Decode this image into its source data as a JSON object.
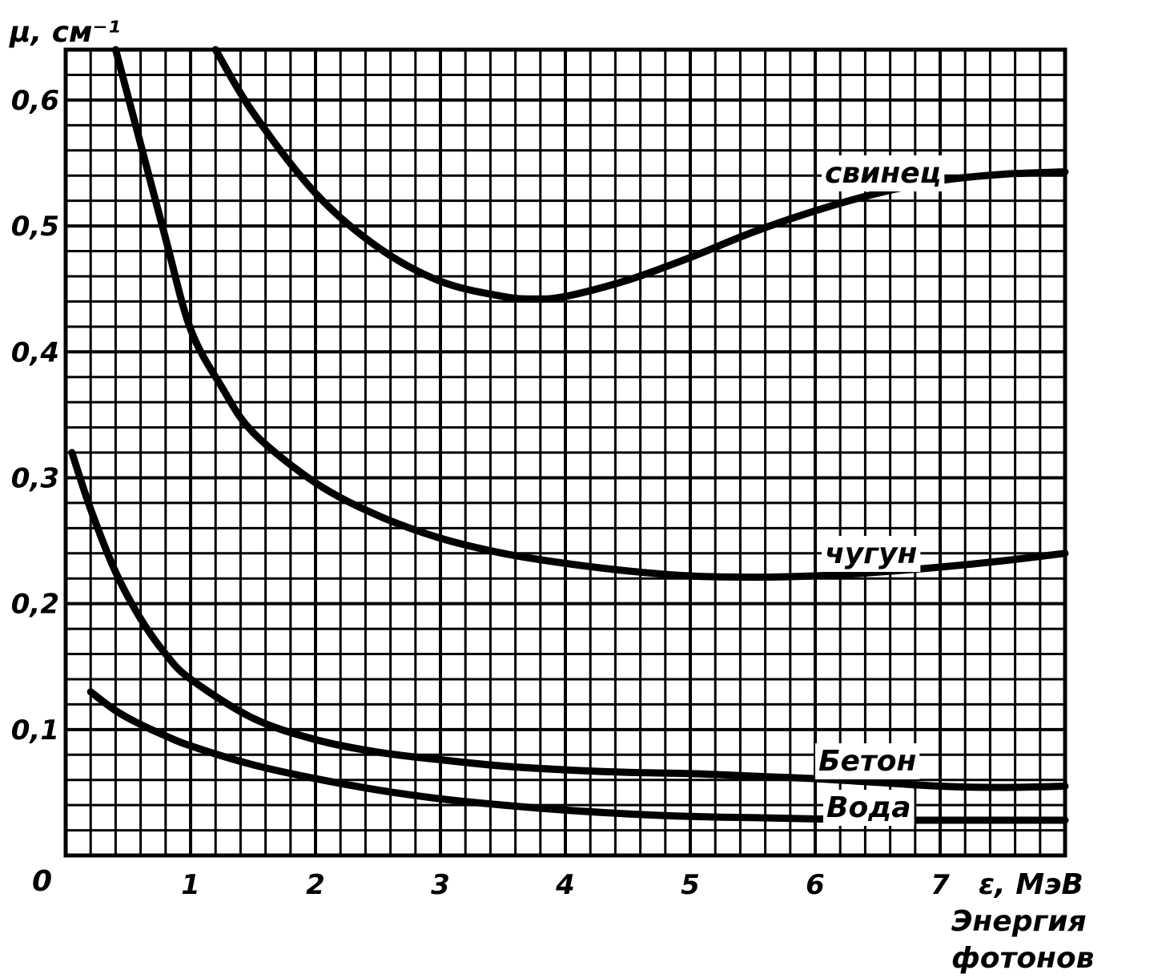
{
  "chart_data": {
    "type": "line",
    "title": "",
    "ylabel": "μ, см⁻¹",
    "xlabel": "ε, МэВ",
    "xlabel_caption": [
      "Энергия",
      "фотонов"
    ],
    "origin_label": "0",
    "xlim": [
      0,
      8
    ],
    "ylim": [
      0,
      0.64
    ],
    "x_ticks": [
      1,
      2,
      3,
      4,
      5,
      6,
      7
    ],
    "x_tick_labels": [
      "1",
      "2",
      "3",
      "4",
      "5",
      "6",
      "7"
    ],
    "y_ticks": [
      0.1,
      0.2,
      0.3,
      0.4,
      0.5,
      0.6
    ],
    "y_tick_labels": [
      "0,1",
      "0,2",
      "0,3",
      "0,4",
      "0,5",
      "0,6"
    ],
    "grid": true,
    "grid_minor_x": 0.2,
    "grid_minor_y": 0.02,
    "series": [
      {
        "name": "свинец",
        "x": [
          1.2,
          1.5,
          2.0,
          2.5,
          3.0,
          3.5,
          3.75,
          4.0,
          4.5,
          5.0,
          5.5,
          6.0,
          6.5,
          7.0,
          7.5,
          8.0
        ],
        "y": [
          0.64,
          0.59,
          0.526,
          0.483,
          0.456,
          0.444,
          0.442,
          0.444,
          0.457,
          0.475,
          0.495,
          0.512,
          0.526,
          0.536,
          0.541,
          0.543
        ]
      },
      {
        "name": "чугун",
        "x": [
          0.4,
          0.6,
          0.8,
          1.0,
          1.25,
          1.5,
          2.0,
          2.5,
          3.0,
          3.5,
          4.0,
          4.5,
          5.0,
          5.5,
          6.0,
          6.5,
          7.0,
          7.5,
          8.0
        ],
        "y": [
          0.64,
          0.565,
          0.49,
          0.418,
          0.372,
          0.336,
          0.296,
          0.27,
          0.252,
          0.24,
          0.232,
          0.226,
          0.222,
          0.221,
          0.222,
          0.225,
          0.229,
          0.234,
          0.24
        ]
      },
      {
        "name": "Бетон",
        "x": [
          0.05,
          0.2,
          0.4,
          0.6,
          0.8,
          1.0,
          1.5,
          2.0,
          2.5,
          3.0,
          3.5,
          4.0,
          4.5,
          5.0,
          5.5,
          6.0,
          6.5,
          7.0,
          7.5,
          8.0
        ],
        "y": [
          0.32,
          0.275,
          0.225,
          0.188,
          0.16,
          0.14,
          0.109,
          0.092,
          0.082,
          0.076,
          0.071,
          0.068,
          0.066,
          0.065,
          0.063,
          0.061,
          0.058,
          0.055,
          0.054,
          0.055
        ]
      },
      {
        "name": "Вода",
        "x": [
          0.2,
          0.4,
          0.6,
          0.8,
          1.0,
          1.5,
          2.0,
          2.5,
          3.0,
          3.5,
          4.0,
          4.5,
          5.0,
          5.5,
          6.0,
          6.5,
          7.0,
          7.5,
          8.0
        ],
        "y": [
          0.13,
          0.115,
          0.104,
          0.095,
          0.087,
          0.072,
          0.061,
          0.052,
          0.045,
          0.04,
          0.036,
          0.033,
          0.031,
          0.03,
          0.029,
          0.028,
          0.028,
          0.028,
          0.028
        ]
      }
    ]
  }
}
